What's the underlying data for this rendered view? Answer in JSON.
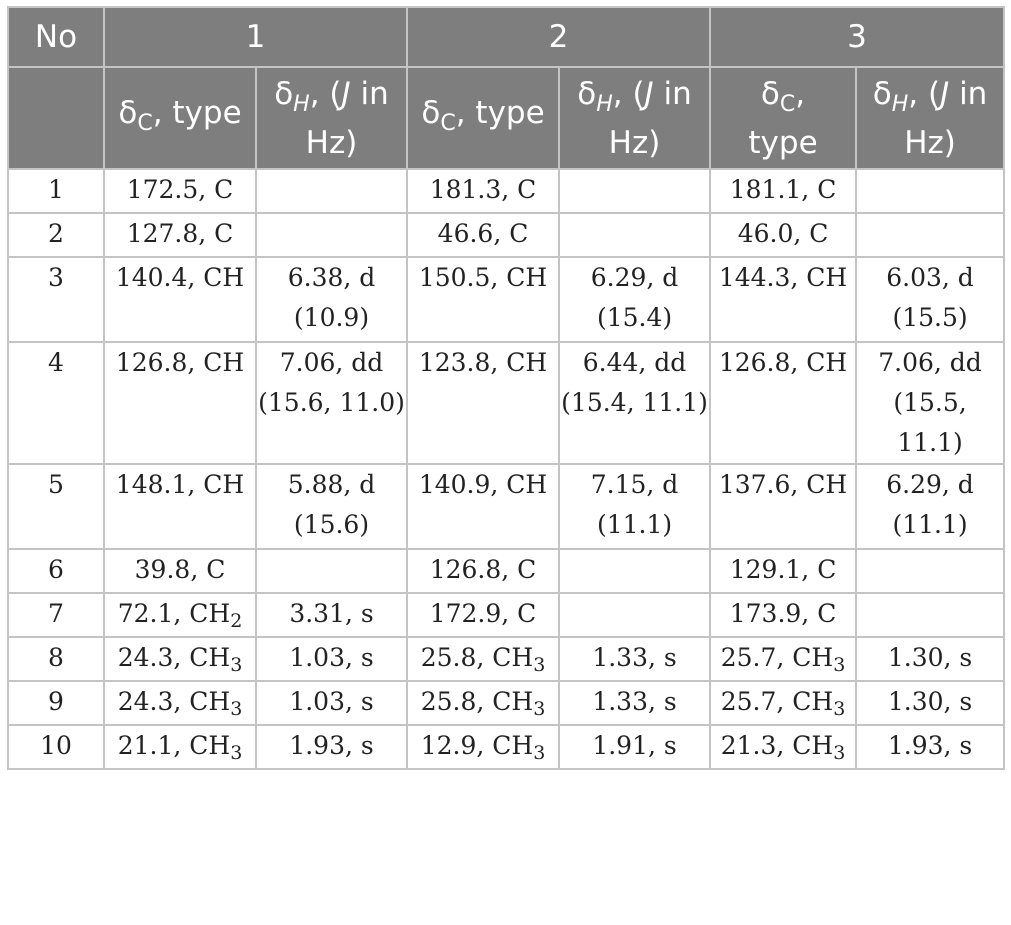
{
  "header": {
    "no_label": "No",
    "groups": [
      "1",
      "2",
      "3"
    ],
    "delta_symbol": "δ",
    "c_sub": "C",
    "h_sub": "H",
    "type_text": ", type",
    "j_prefix": ", (",
    "j_letter": "J",
    "j_in": " in",
    "hz_text": "Hz)"
  },
  "rows": [
    {
      "no": "1",
      "c1": "172.5, C",
      "h1": [],
      "c2": "181.3, C",
      "h2": [],
      "c3": "181.1, C",
      "h3": []
    },
    {
      "no": "2",
      "c1": "127.8, C",
      "h1": [],
      "c2": "46.6, C",
      "h2": [],
      "c3": "46.0, C",
      "h3": []
    },
    {
      "no": "3",
      "c1": "140.4, CH",
      "h1": [
        "6.38, d",
        "(10.9)"
      ],
      "c2": "150.5, CH",
      "h2": [
        "6.29, d",
        "(15.4)"
      ],
      "c3": "144.3, CH",
      "h3": [
        "6.03, d",
        "(15.5)"
      ]
    },
    {
      "no": "4",
      "c1": "126.8, CH",
      "h1": [
        "7.06, dd",
        "(15.6, 11.0)"
      ],
      "c2": "123.8, CH",
      "h2": [
        "6.44, dd",
        "(15.4, 11.1)"
      ],
      "c3": "126.8, CH",
      "h3": [
        "7.06, dd",
        "(15.5, 11.1)"
      ]
    },
    {
      "no": "5",
      "c1": "148.1, CH",
      "h1": [
        "5.88, d",
        "(15.6)"
      ],
      "c2": "140.9, CH",
      "h2": [
        "7.15, d",
        "(11.1)"
      ],
      "c3": "137.6, CH",
      "h3": [
        "6.29, d",
        "(11.1)"
      ]
    },
    {
      "no": "6",
      "c1": "39.8, C",
      "h1": [],
      "c2": "126.8, C",
      "h2": [],
      "c3": "129.1, C",
      "h3": []
    },
    {
      "no": "7",
      "c1": "72.1, CH",
      "c1_sub": "2",
      "h1": [
        "3.31, s"
      ],
      "c2": "172.9, C",
      "h2": [],
      "c3": "173.9, C",
      "h3": []
    },
    {
      "no": "8",
      "c1": "24.3, CH",
      "c1_sub": "3",
      "h1": [
        "1.03, s"
      ],
      "c2": "25.8, CH",
      "c2_sub": "3",
      "h2": [
        "1.33, s"
      ],
      "c3": "25.7, CH",
      "c3_sub": "3",
      "h3": [
        "1.30, s"
      ]
    },
    {
      "no": "9",
      "c1": "24.3, CH",
      "c1_sub": "3",
      "h1": [
        "1.03, s"
      ],
      "c2": "25.8, CH",
      "c2_sub": "3",
      "h2": [
        "1.33, s"
      ],
      "c3": "25.7, CH",
      "c3_sub": "3",
      "h3": [
        "1.30, s"
      ]
    },
    {
      "no": "10",
      "c1": "21.1, CH",
      "c1_sub": "3",
      "h1": [
        "1.93, s"
      ],
      "c2": "12.9, CH",
      "c2_sub": "3",
      "h2": [
        "1.91, s"
      ],
      "c3": "21.3, CH",
      "c3_sub": "3",
      "h3": [
        "1.93, s"
      ]
    }
  ]
}
